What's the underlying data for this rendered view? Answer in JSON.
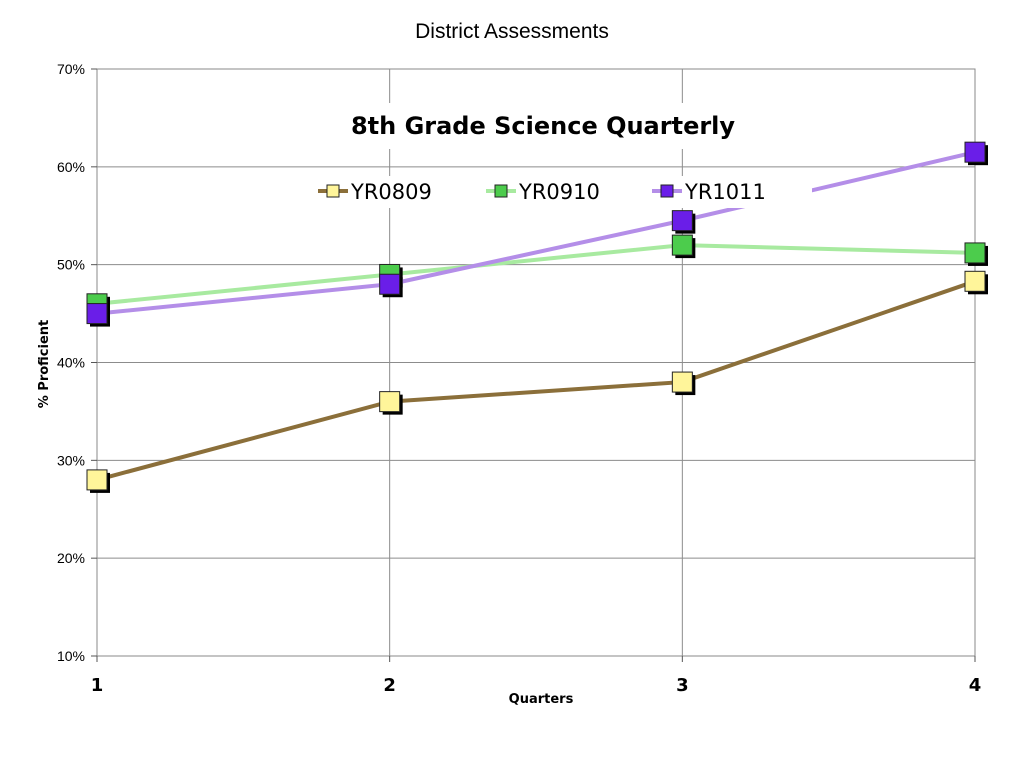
{
  "slide": {
    "title": "District Assessments"
  },
  "chart_data": {
    "type": "line",
    "title": "8th Grade Science Quarterly",
    "xlabel": "Quarters",
    "ylabel": "% Proficient",
    "x": [
      "1",
      "2",
      "3",
      "4"
    ],
    "ylim": [
      10,
      70
    ],
    "yticks": [
      "10%",
      "20%",
      "30%",
      "40%",
      "50%",
      "60%",
      "70%"
    ],
    "grid": true,
    "legend": "top-center",
    "series": [
      {
        "name": "YR0809",
        "values": [
          28,
          36,
          38,
          48.3
        ],
        "line_color": "#8b6f3a",
        "marker_color": "#fff59a"
      },
      {
        "name": "YR0910",
        "values": [
          46,
          49,
          52,
          51.2
        ],
        "line_color": "#a8eaa0",
        "marker_color": "#4ccc4c"
      },
      {
        "name": "YR1011",
        "values": [
          45,
          48,
          54.5,
          61.5
        ],
        "line_color": "#b48ee8",
        "marker_color": "#6a1ee8"
      }
    ]
  }
}
